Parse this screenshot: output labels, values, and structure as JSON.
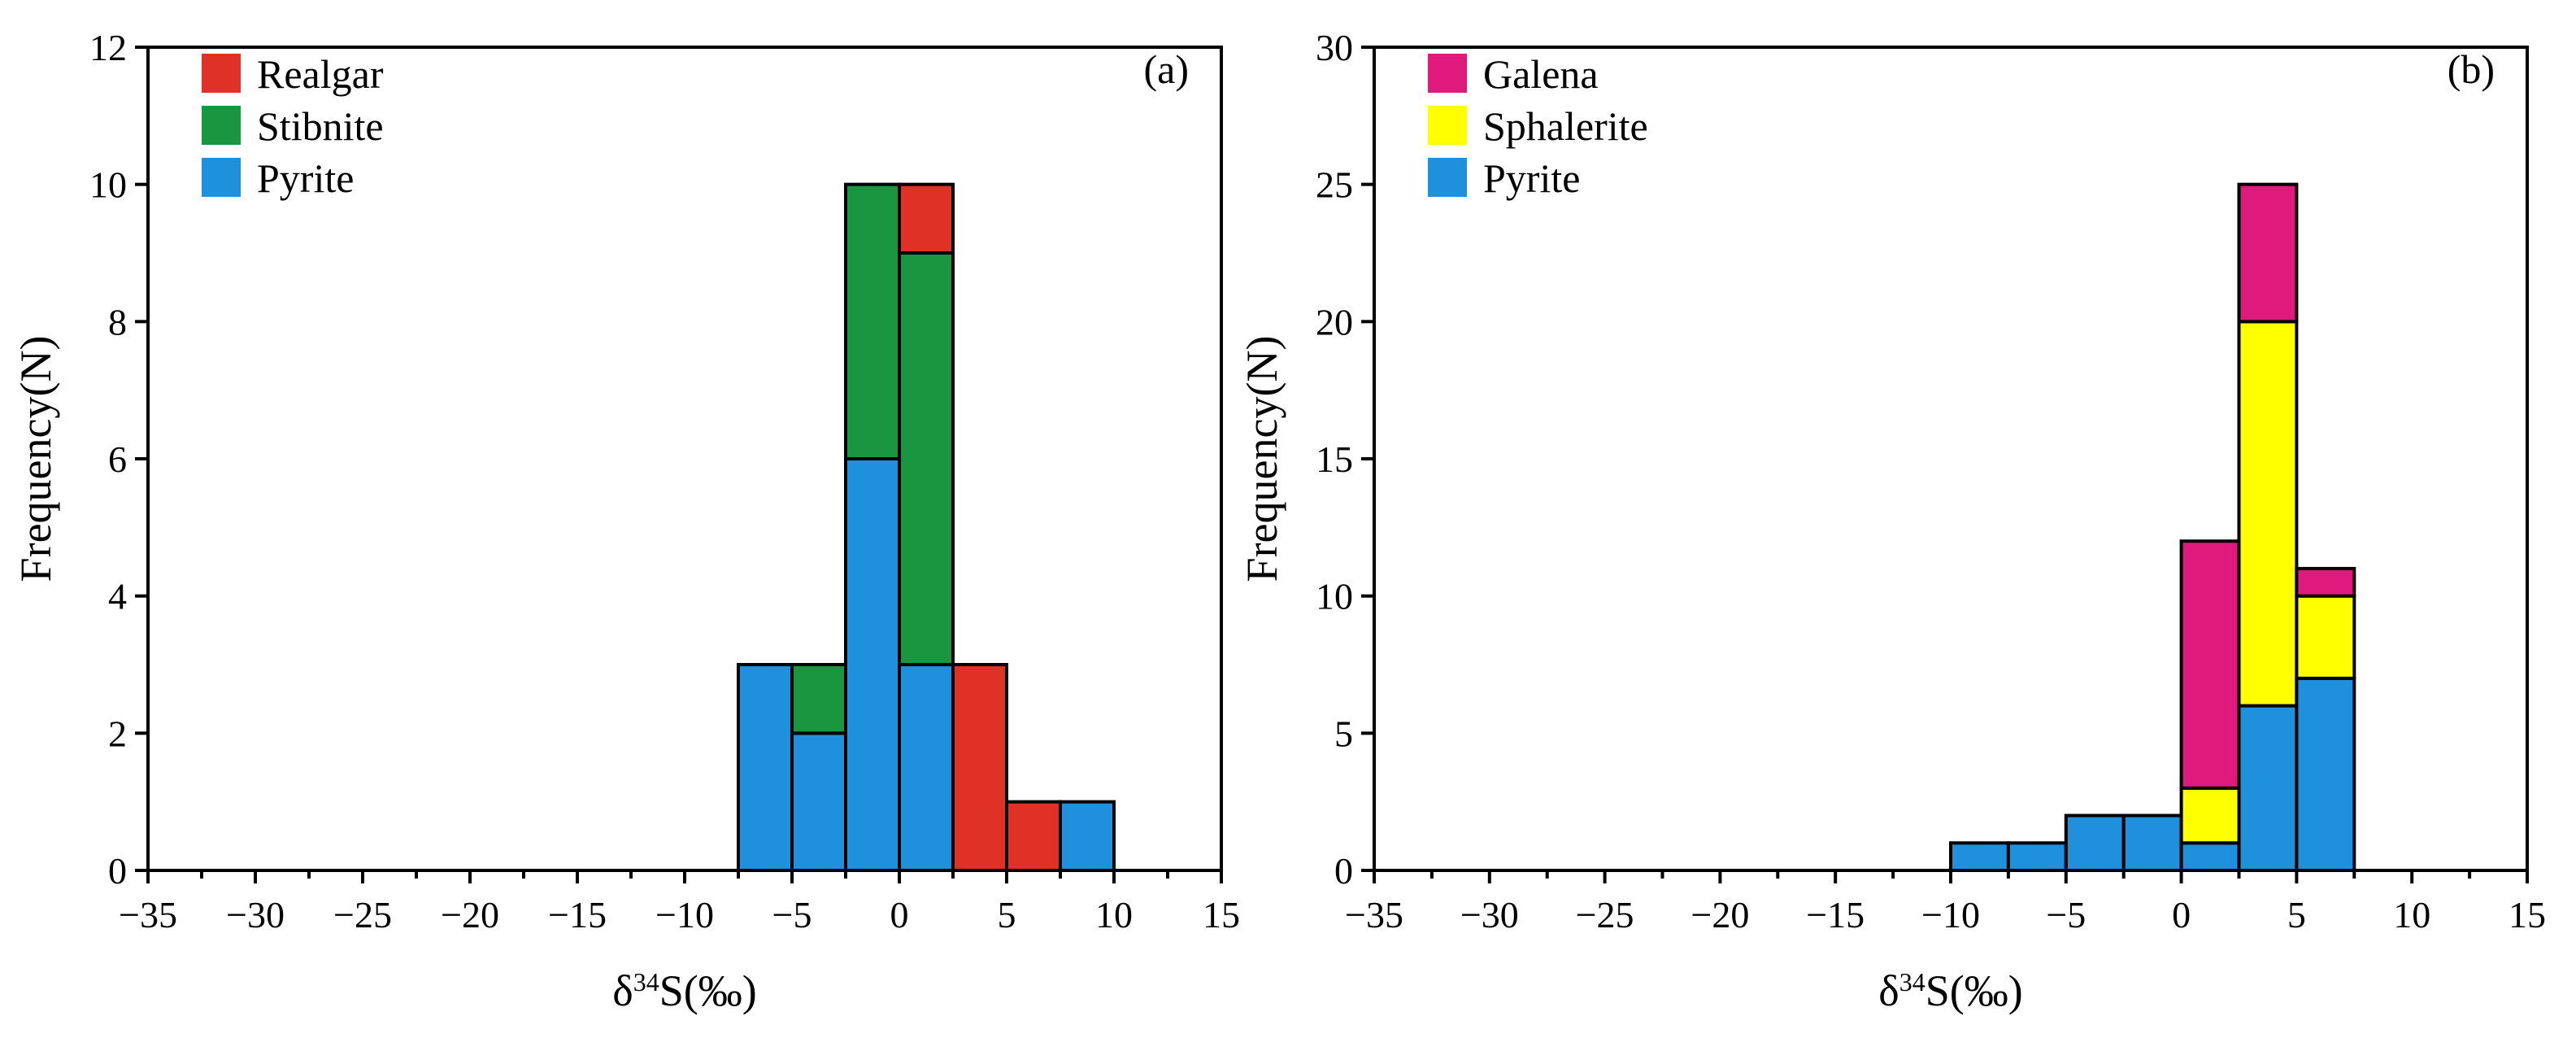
{
  "chart_data": [
    {
      "type": "bar",
      "stacked": true,
      "panel_label": "(a)",
      "xlabel": "δ34S(‰)",
      "xlabel_main": "δ",
      "xlabel_sup": "34",
      "xlabel_rest": "S(‰)",
      "ylabel": "Frequency(N)",
      "xlim": [
        -35,
        15
      ],
      "ylim": [
        0,
        12
      ],
      "xticks": [
        -35,
        -30,
        -25,
        -20,
        -15,
        -10,
        -5,
        0,
        5,
        10,
        15
      ],
      "xtick_labels": [
        "−35",
        "−30",
        "−25",
        "−20",
        "−15",
        "−10",
        "−5",
        "0",
        "5",
        "10",
        "15"
      ],
      "yticks": [
        0,
        2,
        4,
        6,
        8,
        10,
        12
      ],
      "ytick_labels": [
        "0",
        "2",
        "4",
        "6",
        "8",
        "10",
        "12"
      ],
      "bin_width": 2.5,
      "bins": [
        -7.5,
        -5,
        -2.5,
        0,
        2.5,
        5,
        7.5
      ],
      "series": [
        {
          "name": "Pyrite",
          "color": "#1e90dc",
          "values": [
            3,
            2,
            6,
            3,
            0,
            0,
            1
          ]
        },
        {
          "name": "Stibnite",
          "color": "#1a9641",
          "values": [
            0,
            1,
            4,
            6,
            0,
            0,
            0
          ]
        },
        {
          "name": "Realgar",
          "color": "#e03127",
          "values": [
            0,
            0,
            0,
            1,
            3,
            1,
            0
          ]
        }
      ],
      "legend": [
        "Realgar",
        "Stibnite",
        "Pyrite"
      ],
      "legend_position": "top-left"
    },
    {
      "type": "bar",
      "stacked": true,
      "panel_label": "(b)",
      "xlabel": "δ34S(‰)",
      "xlabel_main": "δ",
      "xlabel_sup": "34",
      "xlabel_rest": "S(‰)",
      "ylabel": "Frequency(N)",
      "xlim": [
        -35,
        15
      ],
      "ylim": [
        0,
        30
      ],
      "xticks": [
        -35,
        -30,
        -25,
        -20,
        -15,
        -10,
        -5,
        0,
        5,
        10,
        15
      ],
      "xtick_labels": [
        "−35",
        "−30",
        "−25",
        "−20",
        "−15",
        "−10",
        "−5",
        "0",
        "5",
        "10",
        "15"
      ],
      "yticks": [
        0,
        5,
        10,
        15,
        20,
        25,
        30
      ],
      "ytick_labels": [
        "0",
        "5",
        "10",
        "15",
        "20",
        "25",
        "30"
      ],
      "bin_width": 2.5,
      "bins": [
        -10,
        -7.5,
        -5,
        -2.5,
        0,
        2.5,
        5
      ],
      "series": [
        {
          "name": "Pyrite",
          "color": "#1e90dc",
          "values": [
            1,
            1,
            2,
            2,
            1,
            6,
            7
          ]
        },
        {
          "name": "Sphalerite",
          "color": "#ffff00",
          "values": [
            0,
            0,
            0,
            0,
            2,
            14,
            3
          ]
        },
        {
          "name": "Galena",
          "color": "#e0197d",
          "values": [
            0,
            0,
            0,
            0,
            9,
            5,
            1
          ]
        }
      ],
      "legend": [
        "Galena",
        "Sphalerite",
        "Pyrite"
      ],
      "legend_position": "top-left"
    }
  ]
}
